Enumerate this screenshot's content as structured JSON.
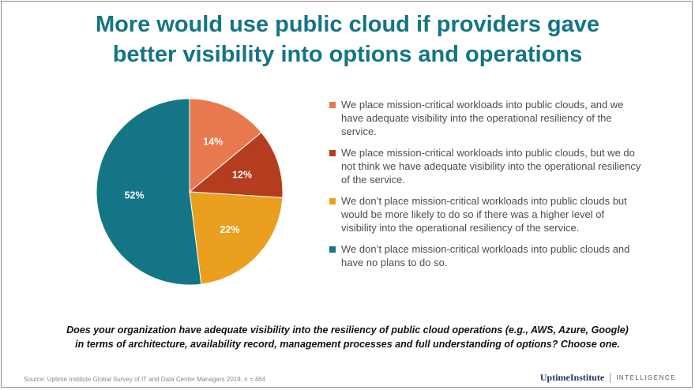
{
  "title": {
    "line1": "More would use public cloud if providers gave",
    "line2": "better visibility into options and operations"
  },
  "chart_data": {
    "type": "pie",
    "slices": [
      {
        "label": "We place mission-critical workloads into public clouds, and we have adequate visibility into the operational resiliency of the service.",
        "value": 14,
        "value_label": "14%",
        "color": "#e8784d"
      },
      {
        "label": "We place mission-critical workloads into public clouds, but we do not think we have adequate visibility into the operational resiliency of the service.",
        "value": 12,
        "value_label": "12%",
        "color": "#b53c1e"
      },
      {
        "label": "We don’t place mission-critical workloads into public clouds but would be more likely to do so if there was a higher level of visibility into the operational resiliency of the service.",
        "value": 22,
        "value_label": "22%",
        "color": "#eb9f1e"
      },
      {
        "label": "We don’t place mission-critical workloads into public clouds and have no plans to do so.",
        "value": 52,
        "value_label": "52%",
        "color": "#137585"
      }
    ],
    "legend_position": "right"
  },
  "question": {
    "line1": "Does your organization have adequate visibility into the resiliency of public cloud operations (e.g., AWS, Azure, Google)",
    "line2": "in terms of architecture, availability record, management processes and full understanding of options?  Choose one."
  },
  "source": "Source: Uptime Institute Global Survey of IT and Data Center Managers 2019, n = 464",
  "brand": {
    "name": "UptimeInstitute",
    "tag": "INTELLIGENCE"
  }
}
